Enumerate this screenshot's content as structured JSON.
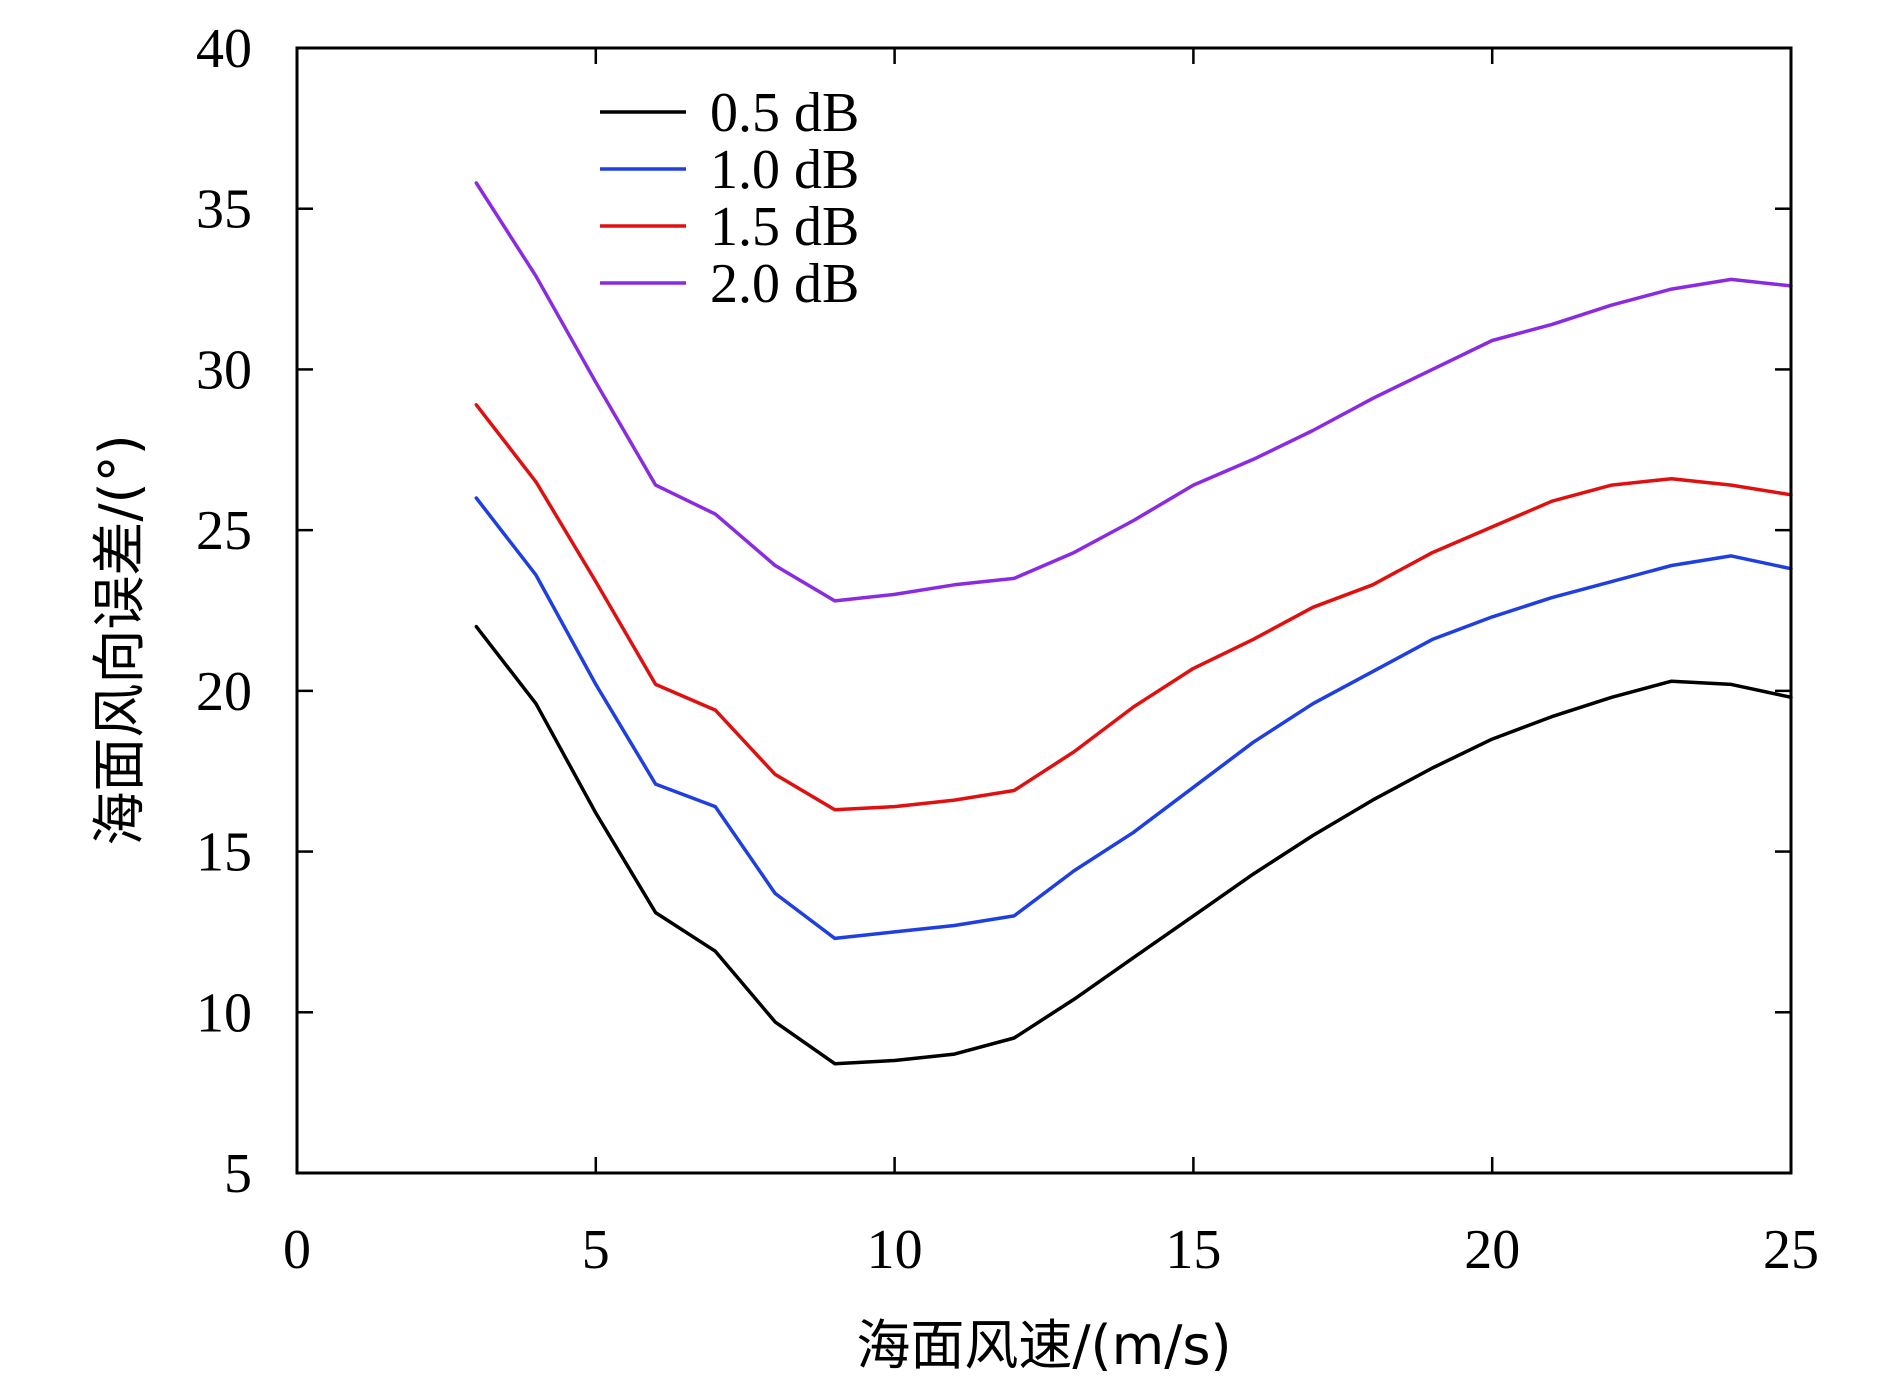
{
  "chart_data": {
    "type": "line",
    "title": "",
    "xlabel": "海面风速/(m/s)",
    "ylabel": "海面风向误差/(°)",
    "xlim": [
      0,
      25
    ],
    "ylim": [
      5,
      40
    ],
    "xticks": [
      0,
      5,
      10,
      15,
      20,
      25
    ],
    "yticks": [
      5,
      10,
      15,
      20,
      25,
      30,
      35,
      40
    ],
    "xtick_labels": [
      "0",
      "5",
      "10",
      "15",
      "20",
      "25"
    ],
    "ytick_labels": [
      "5",
      "10",
      "15",
      "20",
      "25",
      "30",
      "35",
      "40"
    ],
    "grid": false,
    "legend_position": "top-left",
    "x": [
      3,
      4,
      5,
      6,
      7,
      8,
      9,
      10,
      11,
      12,
      13,
      14,
      15,
      16,
      17,
      18,
      19,
      20,
      21,
      22,
      23,
      24,
      25
    ],
    "series": [
      {
        "name": "0.5 dB",
        "color": "#000000",
        "values": [
          22.0,
          19.6,
          16.2,
          13.1,
          11.9,
          9.7,
          8.4,
          8.5,
          8.7,
          9.2,
          10.4,
          11.7,
          13.0,
          14.3,
          15.5,
          16.6,
          17.6,
          18.5,
          19.2,
          19.8,
          20.3,
          20.2,
          19.8
        ]
      },
      {
        "name": "1.0 dB",
        "color": "#1f3fe0",
        "values": [
          26.0,
          23.6,
          20.2,
          17.1,
          16.4,
          13.7,
          12.3,
          12.5,
          12.7,
          13.0,
          14.4,
          15.6,
          17.0,
          18.4,
          19.6,
          20.6,
          21.6,
          22.3,
          22.9,
          23.4,
          23.9,
          24.2,
          23.8
        ]
      },
      {
        "name": "1.5 dB",
        "color": "#e01010",
        "values": [
          28.9,
          26.5,
          23.4,
          20.2,
          19.4,
          17.4,
          16.3,
          16.4,
          16.6,
          16.9,
          18.1,
          19.5,
          20.7,
          21.6,
          22.6,
          23.3,
          24.3,
          25.1,
          25.9,
          26.4,
          26.6,
          26.4,
          26.1
        ]
      },
      {
        "name": "2.0 dB",
        "color": "#8a2be2",
        "values": [
          35.8,
          32.9,
          29.6,
          26.4,
          25.5,
          23.9,
          22.8,
          23.0,
          23.3,
          23.5,
          24.3,
          25.3,
          26.4,
          27.2,
          28.1,
          29.1,
          30.0,
          30.9,
          31.4,
          32.0,
          32.5,
          32.8,
          32.6
        ]
      }
    ]
  }
}
